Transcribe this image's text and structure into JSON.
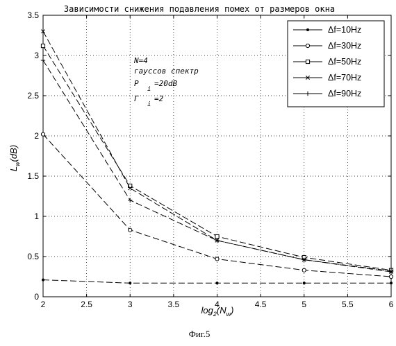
{
  "chart_data": {
    "type": "line",
    "title": "Зависимости снижения подавления помех от размеров окна",
    "xlabel": "log2(Nw)",
    "ylabel": "Lw(dB)",
    "xlim": [
      2,
      6
    ],
    "ylim": [
      0,
      3.5
    ],
    "xticks": [
      "2",
      "2.5",
      "3",
      "3.5",
      "4",
      "4.5",
      "5",
      "5.5",
      "6"
    ],
    "yticks": [
      "0",
      "0.5",
      "1",
      "1.5",
      "2",
      "2.5",
      "3",
      "3.5"
    ],
    "grid": true,
    "legend_position": "top-right",
    "x": [
      2,
      3,
      4,
      5,
      6
    ],
    "series": [
      {
        "name": "Δf=10Hz",
        "marker": "dot",
        "values": [
          0.21,
          0.17,
          0.17,
          0.17,
          0.17
        ]
      },
      {
        "name": "Δf=30Hz",
        "marker": "circle",
        "values": [
          2.02,
          0.83,
          0.47,
          0.33,
          0.25
        ]
      },
      {
        "name": "Δf=50Hz",
        "marker": "square",
        "values": [
          3.12,
          1.38,
          0.75,
          0.49,
          0.33
        ]
      },
      {
        "name": "Δf=70Hz",
        "marker": "x",
        "values": [
          3.3,
          1.35,
          0.7,
          0.46,
          0.31
        ]
      },
      {
        "name": "Δf=90Hz",
        "marker": "plus",
        "values": [
          2.94,
          1.2,
          0.7,
          0.46,
          0.32
        ]
      }
    ],
    "annotations": [
      "N=4",
      "гауссов спектр",
      "P",
      "i",
      "=20dB",
      "Г",
      "i",
      "=2"
    ]
  },
  "caption": "Фиг.5"
}
